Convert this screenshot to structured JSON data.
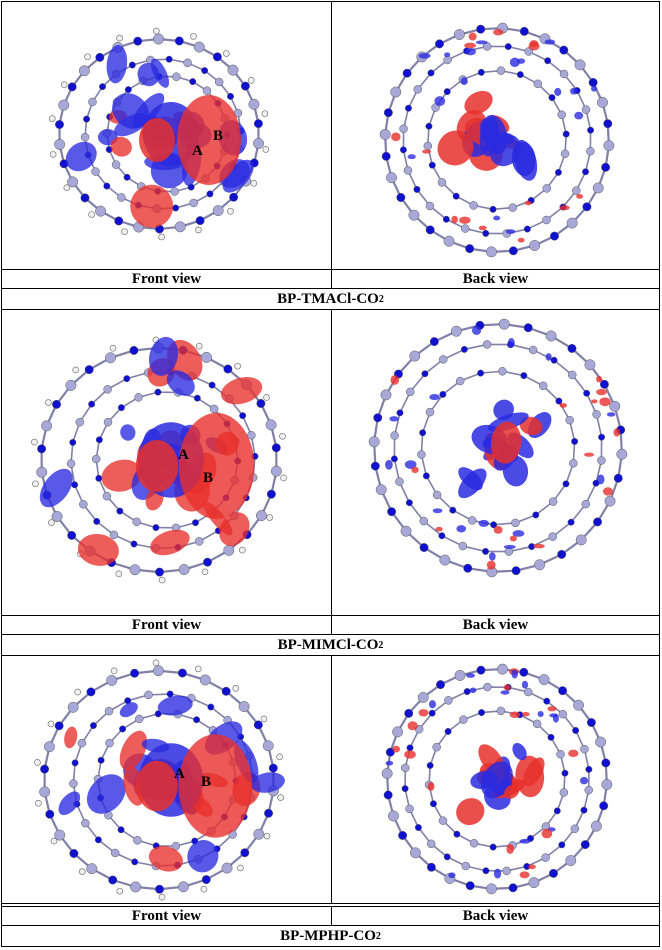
{
  "panels": [
    {
      "front_label": "Front view",
      "back_label": "Back view",
      "title_main": "BP-TMACl-CO",
      "title_sub": "2",
      "point_a": "A",
      "point_b": "B"
    },
    {
      "front_label": "Front view",
      "back_label": "Back view",
      "title_main": "BP-MIMCl-CO",
      "title_sub": "2",
      "point_a": "A",
      "point_b": "B"
    },
    {
      "front_label": "Front view",
      "back_label": "Back view",
      "title_main": "BP-MPHP-CO",
      "title_sub": "2",
      "point_a": "A",
      "point_b": "B"
    }
  ],
  "colors": {
    "positive_lobe": "#e8302c",
    "negative_lobe": "#2a2ae0",
    "carbon_atom": "#a8a8d8",
    "nitrogen_atom": "#1010d0",
    "hydrogen_atom": "#f0f0f0",
    "bond": "#8080a8"
  }
}
